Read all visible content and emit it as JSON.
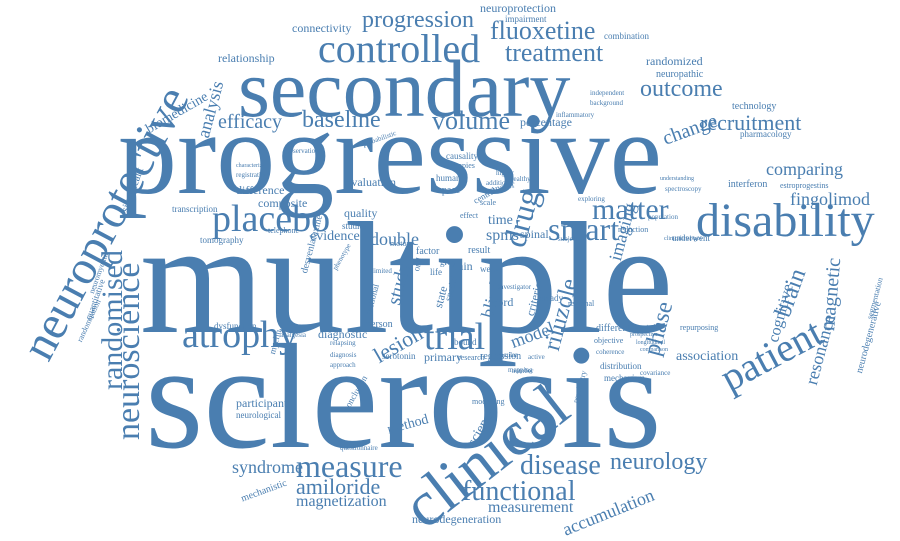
{
  "theme": {
    "word_color": "#4a7eb0",
    "background": "#ffffff"
  },
  "words": [
    {
      "text": "multiple"
    },
    {
      "text": "sclerosis"
    },
    {
      "text": "progressive"
    },
    {
      "text": "secondary"
    },
    {
      "text": "clinical"
    },
    {
      "text": "neuroprotective"
    },
    {
      "text": "disability"
    },
    {
      "text": "controlled"
    },
    {
      "text": "placebo"
    },
    {
      "text": "atrophy"
    },
    {
      "text": "trial"
    },
    {
      "text": "patient"
    },
    {
      "text": "neuroscience"
    },
    {
      "text": "randomised"
    },
    {
      "text": "measure"
    },
    {
      "text": "functional"
    },
    {
      "text": "disease"
    },
    {
      "text": "neurology"
    },
    {
      "text": "smart"
    },
    {
      "text": "drug"
    },
    {
      "text": "matter"
    },
    {
      "text": "progression"
    },
    {
      "text": "fluoxetine"
    },
    {
      "text": "treatment"
    },
    {
      "text": "outcome"
    },
    {
      "text": "volume"
    },
    {
      "text": "baseline"
    },
    {
      "text": "efficacy"
    },
    {
      "text": "recruitment"
    },
    {
      "text": "change"
    },
    {
      "text": "comparing"
    },
    {
      "text": "fingolimod"
    },
    {
      "text": "brain"
    },
    {
      "text": "magnetic"
    },
    {
      "text": "resonance"
    },
    {
      "text": "cognitive"
    },
    {
      "text": "amiloride"
    },
    {
      "text": "magnetization"
    },
    {
      "text": "measurement"
    },
    {
      "text": "accumulation"
    },
    {
      "text": "syndrome"
    },
    {
      "text": "neurodegeneration"
    },
    {
      "text": "riluzole"
    },
    {
      "text": "phase"
    },
    {
      "text": "imaging"
    },
    {
      "text": "lesion"
    },
    {
      "text": "double"
    },
    {
      "text": "blind"
    },
    {
      "text": "spms"
    },
    {
      "text": "model"
    },
    {
      "text": "association"
    },
    {
      "text": "analysis"
    },
    {
      "text": "biomedicine"
    },
    {
      "text": "relationship"
    },
    {
      "text": "connectivity"
    },
    {
      "text": "neuroprotection"
    },
    {
      "text": "impairment"
    },
    {
      "text": "combination"
    },
    {
      "text": "randomized"
    },
    {
      "text": "neuropathic"
    },
    {
      "text": "percentage"
    },
    {
      "text": "technology"
    },
    {
      "text": "interferon"
    },
    {
      "text": "estroprogestins"
    },
    {
      "text": "neurodegenerative"
    },
    {
      "text": "segmentation"
    },
    {
      "text": "participant"
    },
    {
      "text": "neurological"
    },
    {
      "text": "mechanistic"
    },
    {
      "text": "method"
    },
    {
      "text": "science"
    },
    {
      "text": "diagnostic"
    },
    {
      "text": "evidence"
    },
    {
      "text": "quality"
    },
    {
      "text": "evaluation"
    },
    {
      "text": "composite"
    },
    {
      "text": "difference"
    },
    {
      "text": "spinal"
    },
    {
      "text": "time"
    },
    {
      "text": "study"
    },
    {
      "text": "cord"
    },
    {
      "text": "criterion"
    },
    {
      "text": "regression"
    },
    {
      "text": "primary"
    },
    {
      "text": "serotonin"
    },
    {
      "text": "person"
    },
    {
      "text": "conclusion"
    },
    {
      "text": "distribution"
    },
    {
      "text": "mechanism"
    },
    {
      "text": "research"
    },
    {
      "text": "different"
    },
    {
      "text": "underwent"
    },
    {
      "text": "reduction"
    },
    {
      "text": "space"
    },
    {
      "text": "human"
    },
    {
      "text": "factor"
    },
    {
      "text": "dysfunction"
    },
    {
      "text": "tomography"
    },
    {
      "text": "transcription"
    },
    {
      "text": "significant"
    },
    {
      "text": "quantitative"
    },
    {
      "text": "randomisation"
    },
    {
      "text": "neuromyelitis"
    },
    {
      "text": "observational"
    },
    {
      "text": "independent"
    },
    {
      "text": "background"
    },
    {
      "text": "inflammatory"
    },
    {
      "text": "pharmacology"
    },
    {
      "text": "repurposing"
    },
    {
      "text": "objective"
    },
    {
      "text": "desvenlafaxine"
    },
    {
      "text": "oral"
    },
    {
      "text": "result"
    },
    {
      "text": "pain"
    },
    {
      "text": "effect"
    },
    {
      "text": "week"
    },
    {
      "text": "scale"
    },
    {
      "text": "motor"
    },
    {
      "text": "grey"
    },
    {
      "text": "bound"
    },
    {
      "text": "steady"
    },
    {
      "text": "state"
    },
    {
      "text": "spatial"
    },
    {
      "text": "regional"
    },
    {
      "text": "central"
    },
    {
      "text": "telephone"
    },
    {
      "text": "studies"
    },
    {
      "text": "analgesia"
    },
    {
      "text": "registration"
    },
    {
      "text": "characterize"
    },
    {
      "text": "probabilistic"
    },
    {
      "text": "causality"
    },
    {
      "text": "therapies"
    },
    {
      "text": "healthy"
    },
    {
      "text": "higher"
    },
    {
      "text": "addition"
    },
    {
      "text": "transfer"
    },
    {
      "text": "exploring"
    },
    {
      "text": "population"
    },
    {
      "text": "automated"
    },
    {
      "text": "prospective"
    },
    {
      "text": "longitudinal"
    },
    {
      "text": "comparison"
    },
    {
      "text": "spectroscopy"
    },
    {
      "text": "understanding"
    },
    {
      "text": "subject"
    },
    {
      "text": "coherence"
    },
    {
      "text": "myelin"
    },
    {
      "text": "relapsing"
    },
    {
      "text": "diagnosis"
    },
    {
      "text": "approach"
    },
    {
      "text": "modelling"
    },
    {
      "text": "mapping"
    },
    {
      "text": "psychiatry"
    },
    {
      "text": "covariance"
    },
    {
      "text": "questionnaire"
    },
    {
      "text": "phenotype"
    },
    {
      "text": "limited"
    },
    {
      "text": "life"
    },
    {
      "text": "number"
    },
    {
      "text": "investigator"
    },
    {
      "text": "ocular"
    },
    {
      "text": "active"
    },
    {
      "text": "sectional"
    },
    {
      "text": "clinicaltrialsgov"
    }
  ]
}
